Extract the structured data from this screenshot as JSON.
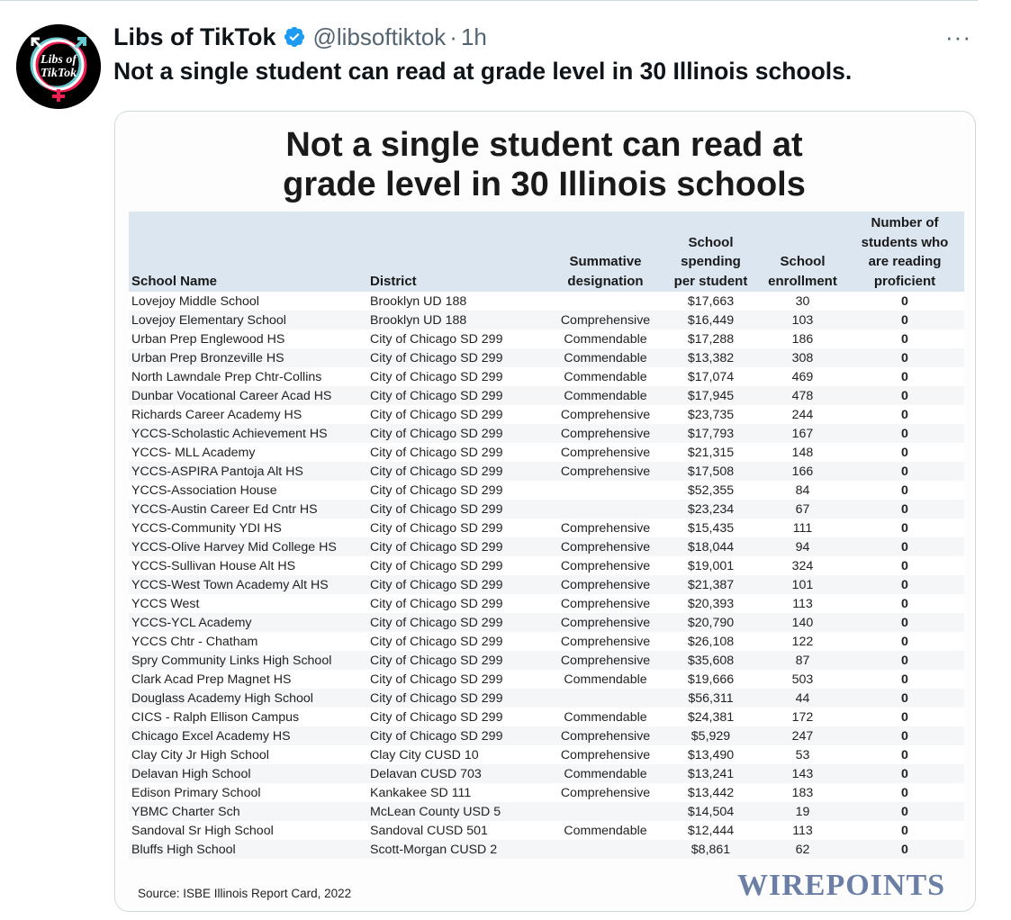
{
  "tweet": {
    "display_name": "Libs of TikTok",
    "handle": "@libsoftiktok",
    "separator": "·",
    "time": "1h",
    "more": "···",
    "text": "Not a single student can read at grade level in 30 Illinois schools.",
    "avatar_text_line1": "Libs of",
    "avatar_text_line2": "TikTok",
    "verified_color": "#1d9bf0"
  },
  "image": {
    "title_line1": "Not a single student can read at",
    "title_line2": "grade level in 30 Illinois schools",
    "headers": {
      "school": "School Name",
      "district": "District",
      "designation_1": "Summative",
      "designation_2": "designation",
      "spending_1": "School",
      "spending_2": "spending",
      "spending_3": "per student",
      "enrollment_1": "School",
      "enrollment_2": "enrollment",
      "proficient_1": "Number of",
      "proficient_2": "students who",
      "proficient_3": "are reading",
      "proficient_4": "proficient"
    },
    "rows": [
      [
        "Lovejoy Middle School",
        "Brooklyn UD 188",
        "",
        "$17,663",
        "30",
        "0"
      ],
      [
        "Lovejoy Elementary School",
        "Brooklyn UD 188",
        "Comprehensive",
        "$16,449",
        "103",
        "0"
      ],
      [
        "Urban Prep Englewood HS",
        "City of Chicago SD 299",
        "Commendable",
        "$17,288",
        "186",
        "0"
      ],
      [
        "Urban Prep Bronzeville HS",
        "City of Chicago SD 299",
        "Commendable",
        "$13,382",
        "308",
        "0"
      ],
      [
        "North Lawndale Prep Chtr-Collins",
        "City of Chicago SD 299",
        "Commendable",
        "$17,074",
        "469",
        "0"
      ],
      [
        "Dunbar Vocational Career Acad HS",
        "City of Chicago SD 299",
        "Commendable",
        "$17,945",
        "478",
        "0"
      ],
      [
        "Richards Career Academy HS",
        "City of Chicago SD 299",
        "Comprehensive",
        "$23,735",
        "244",
        "0"
      ],
      [
        "YCCS-Scholastic Achievement HS",
        "City of Chicago SD 299",
        "Comprehensive",
        "$17,793",
        "167",
        "0"
      ],
      [
        "YCCS- MLL Academy",
        "City of Chicago SD 299",
        "Comprehensive",
        "$21,315",
        "148",
        "0"
      ],
      [
        "YCCS-ASPIRA Pantoja Alt HS",
        "City of Chicago SD 299",
        "Comprehensive",
        "$17,508",
        "166",
        "0"
      ],
      [
        "YCCS-Association House",
        "City of Chicago SD 299",
        "",
        "$52,355",
        "84",
        "0"
      ],
      [
        "YCCS-Austin Career Ed Cntr HS",
        "City of Chicago SD 299",
        "",
        "$23,234",
        "67",
        "0"
      ],
      [
        "YCCS-Community YDI HS",
        "City of Chicago SD 299",
        "Comprehensive",
        "$15,435",
        "111",
        "0"
      ],
      [
        "YCCS-Olive Harvey Mid College HS",
        "City of Chicago SD 299",
        "Comprehensive",
        "$18,044",
        "94",
        "0"
      ],
      [
        "YCCS-Sullivan House Alt HS",
        "City of Chicago SD 299",
        "Comprehensive",
        "$19,001",
        "324",
        "0"
      ],
      [
        "YCCS-West Town Academy Alt HS",
        "City of Chicago SD 299",
        "Comprehensive",
        "$21,387",
        "101",
        "0"
      ],
      [
        "YCCS West",
        "City of Chicago SD 299",
        "Comprehensive",
        "$20,393",
        "113",
        "0"
      ],
      [
        "YCCS-YCL Academy",
        "City of Chicago SD 299",
        "Comprehensive",
        "$20,790",
        "140",
        "0"
      ],
      [
        "YCCS Chtr - Chatham",
        "City of Chicago SD 299",
        "Comprehensive",
        "$26,108",
        "122",
        "0"
      ],
      [
        "Spry Community Links High School",
        "City of Chicago SD 299",
        "Comprehensive",
        "$35,608",
        "87",
        "0"
      ],
      [
        "Clark Acad Prep Magnet HS",
        "City of Chicago SD 299",
        "Commendable",
        "$19,666",
        "503",
        "0"
      ],
      [
        "Douglass Academy High School",
        "City of Chicago SD 299",
        "",
        "$56,311",
        "44",
        "0"
      ],
      [
        "CICS - Ralph Ellison Campus",
        "City of Chicago SD 299",
        "Commendable",
        "$24,381",
        "172",
        "0"
      ],
      [
        "Chicago Excel Academy HS",
        "City of Chicago SD 299",
        "Comprehensive",
        "$5,929",
        "247",
        "0"
      ],
      [
        "Clay City Jr High School",
        "Clay City CUSD 10",
        "Comprehensive",
        "$13,490",
        "53",
        "0"
      ],
      [
        "Delavan High School",
        "Delavan CUSD 703",
        "Commendable",
        "$13,241",
        "143",
        "0"
      ],
      [
        "Edison Primary School",
        "Kankakee SD 111",
        "Comprehensive",
        "$13,442",
        "183",
        "0"
      ],
      [
        "YBMC Charter Sch",
        "McLean County USD 5",
        "",
        "$14,504",
        "19",
        "0"
      ],
      [
        "Sandoval Sr High School",
        "Sandoval CUSD 501",
        "Commendable",
        "$12,444",
        "113",
        "0"
      ],
      [
        "Bluffs High School",
        "Scott-Morgan CUSD 2",
        "",
        "$8,861",
        "62",
        "0"
      ]
    ],
    "source": "Source: ISBE Illinois Report Card, 2022",
    "logo": "WIREPOINTS"
  }
}
